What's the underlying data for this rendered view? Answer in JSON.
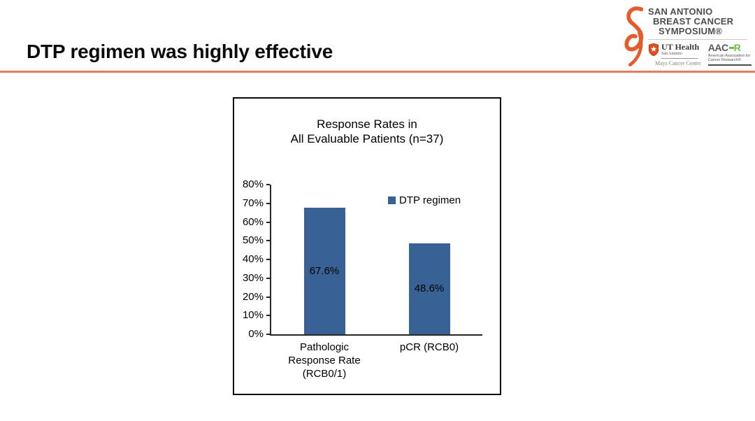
{
  "slide": {
    "title": "DTP regimen was highly effective",
    "colors": {
      "accent_line": "#E97C5E",
      "ribbon_orange": "#E65B2B",
      "shield_orange": "#DC4F1E",
      "aacr_green": "#6CBE45",
      "wordmark_gray": "#4D4D4F"
    }
  },
  "header_logo": {
    "symposium_lines": [
      "SAN ANTONIO",
      "BREAST CANCER",
      "SYMPOSIUM®"
    ],
    "ut_health": {
      "name": "UT Health",
      "location": "San Antonio",
      "center": "Mays Cancer Center"
    },
    "aacr": {
      "letters_dark": "AAC",
      "letter_green": "R",
      "tagline": "American Association for Cancer Research®"
    }
  },
  "chart_data": {
    "type": "bar",
    "title": "Response Rates in All Evaluable Patients (n=37)",
    "title_lines": [
      "Response Rates in",
      "All Evaluable Patients (n=37)"
    ],
    "categories": [
      "Pathologic Response Rate (RCB0/1)",
      "pCR (RCB0)"
    ],
    "category_label_lines": [
      [
        "Pathologic",
        "Response Rate",
        "(RCB0/1)"
      ],
      [
        "pCR (RCB0)"
      ]
    ],
    "series": [
      {
        "name": "DTP regimen",
        "values": [
          67.6,
          48.6
        ]
      }
    ],
    "value_labels": [
      "67.6%",
      "48.6%"
    ],
    "ylim": [
      0,
      80
    ],
    "ytick_labels": [
      "0%",
      "10%",
      "20%",
      "30%",
      "40%",
      "50%",
      "60%",
      "70%",
      "80%"
    ],
    "grid": false,
    "legend": {
      "position": "inside-top-right",
      "entries": [
        "DTP regimen"
      ]
    },
    "bar_color": "#386295",
    "xlabel": "",
    "ylabel": ""
  }
}
